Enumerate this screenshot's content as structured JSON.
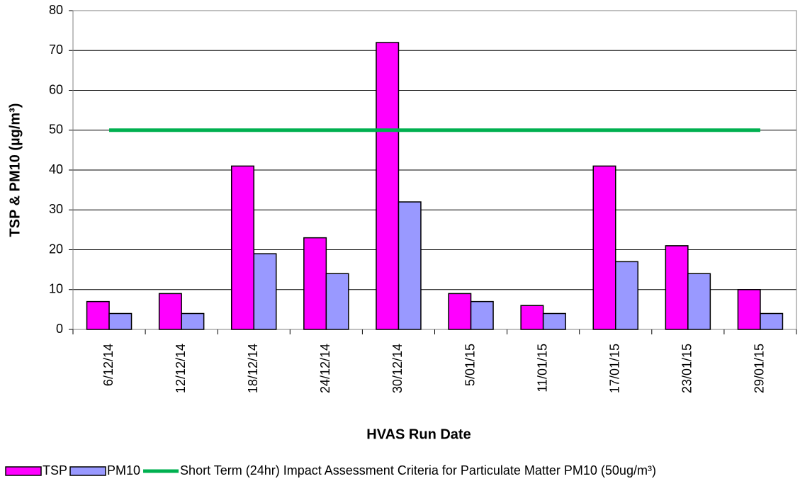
{
  "chart_data": {
    "type": "bar",
    "xlabel": "HVAS Run Date",
    "ylabel": "TSP & PM10 (µg/m³)",
    "categories": [
      "6/12/14",
      "12/12/14",
      "18/12/14",
      "24/12/14",
      "30/12/14",
      "5/01/15",
      "11/01/15",
      "17/01/15",
      "23/01/15",
      "29/01/15"
    ],
    "series": [
      {
        "name": "TSP",
        "color": "#ff00ff",
        "values": [
          7,
          9,
          41,
          23,
          72,
          9,
          6,
          41,
          21,
          10
        ]
      },
      {
        "name": "PM10",
        "color": "#9999ff",
        "values": [
          4,
          4,
          19,
          14,
          32,
          7,
          4,
          17,
          14,
          4
        ]
      },
      {
        "name": "Short Term (24hr) Impact Assessment Criteria for Particulate Matter PM10 (50ug/m³)",
        "color": "#00b050",
        "type": "line",
        "values": [
          50,
          50,
          50,
          50,
          50,
          50,
          50,
          50,
          50,
          50
        ]
      }
    ],
    "ylim": [
      0,
      80
    ],
    "yticks": [
      0,
      10,
      20,
      30,
      40,
      50,
      60,
      70,
      80
    ],
    "grid": true,
    "legend": "bottom"
  }
}
